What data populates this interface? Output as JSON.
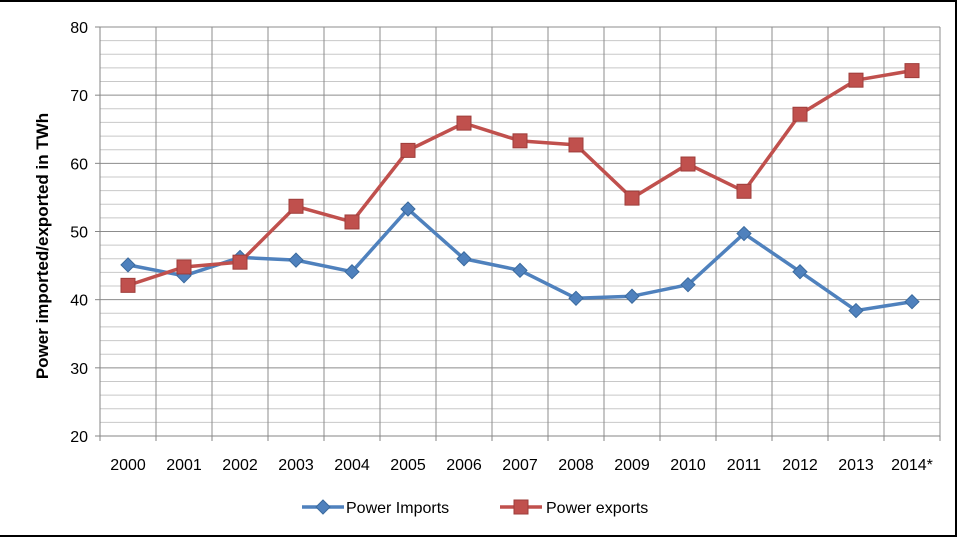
{
  "chart_data": {
    "type": "line",
    "categories": [
      "2000",
      "2001",
      "2002",
      "2003",
      "2004",
      "2005",
      "2006",
      "2007",
      "2008",
      "2009",
      "2010",
      "2011",
      "2012",
      "2013",
      "2014*"
    ],
    "ylabel": "Power imported/exported in TWh",
    "xlabel": "",
    "title": "",
    "ylim": [
      20,
      80
    ],
    "yticks": [
      20,
      30,
      40,
      50,
      60,
      70,
      80
    ],
    "grid": true,
    "legend_position": "bottom",
    "series": [
      {
        "name": "Power Imports",
        "color": "#4F81BD",
        "marker": "diamond",
        "values": [
          45.1,
          43.5,
          46.2,
          45.8,
          44.1,
          53.3,
          46.0,
          44.3,
          40.2,
          40.5,
          42.2,
          49.7,
          44.1,
          38.4,
          39.7
        ]
      },
      {
        "name": "Power exports",
        "color": "#C0504D",
        "marker": "square",
        "values": [
          42.1,
          44.8,
          45.5,
          53.7,
          51.4,
          61.9,
          65.9,
          63.3,
          62.7,
          54.9,
          59.9,
          55.9,
          67.2,
          72.2,
          73.6
        ]
      }
    ]
  }
}
